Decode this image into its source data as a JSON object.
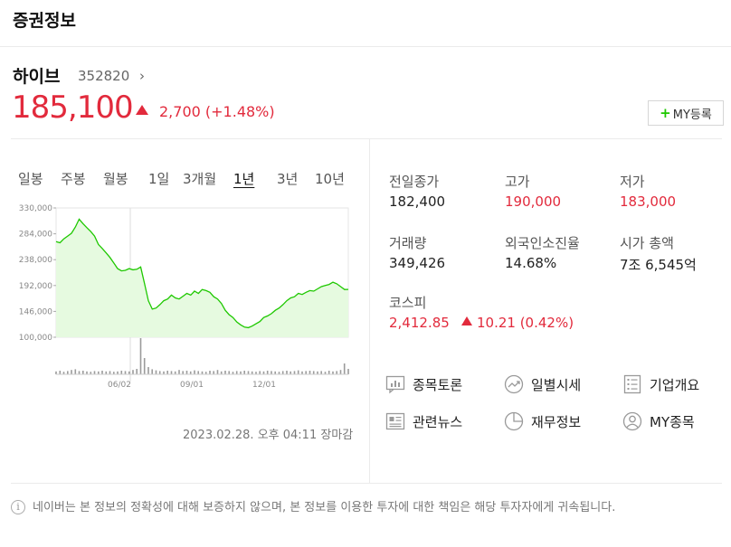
{
  "header": {
    "title": "증권정보"
  },
  "stock": {
    "name": "하이브",
    "code": "352820",
    "chevron": "›",
    "price": "185,100",
    "change": "2,700",
    "change_pct": "(+1.48%)"
  },
  "my_button": {
    "plus": "+",
    "label": "MY등록"
  },
  "tabs": [
    {
      "label": "일봉"
    },
    {
      "label": "주봉"
    },
    {
      "label": "월봉"
    },
    {
      "label": "1일"
    },
    {
      "label": "3개월"
    },
    {
      "label": "1년",
      "active": true
    },
    {
      "label": "3년"
    },
    {
      "label": "10년"
    }
  ],
  "chart_data": {
    "type": "area",
    "y_ticks": [
      "330,000",
      "284,000",
      "238,000",
      "192,000",
      "146,000",
      "100,000"
    ],
    "ylim": [
      100000,
      330000
    ],
    "x_ticks": [
      "06/02",
      "09/01",
      "12/01"
    ],
    "values": [
      270000,
      268000,
      275000,
      280000,
      285000,
      296000,
      310000,
      302000,
      295000,
      288000,
      280000,
      265000,
      258000,
      250000,
      242000,
      232000,
      222000,
      218000,
      219000,
      222000,
      220000,
      221000,
      225000,
      195000,
      165000,
      150000,
      152000,
      158000,
      165000,
      168000,
      175000,
      170000,
      168000,
      173000,
      178000,
      175000,
      182000,
      178000,
      185000,
      183000,
      180000,
      172000,
      168000,
      160000,
      148000,
      140000,
      135000,
      127000,
      122000,
      118000,
      117000,
      120000,
      124000,
      128000,
      135000,
      138000,
      142000,
      148000,
      152000,
      158000,
      165000,
      170000,
      172000,
      178000,
      176000,
      180000,
      183000,
      182000,
      186000,
      190000,
      192000,
      194000,
      198000,
      195000,
      190000,
      185000,
      185100
    ],
    "volume": [
      8,
      10,
      7,
      9,
      12,
      14,
      9,
      10,
      8,
      7,
      9,
      8,
      10,
      8,
      9,
      7,
      8,
      10,
      9,
      8,
      12,
      15,
      100,
      45,
      20,
      14,
      11,
      9,
      8,
      10,
      9,
      8,
      12,
      9,
      10,
      8,
      11,
      9,
      8,
      7,
      10,
      9,
      12,
      8,
      10,
      9,
      7,
      9,
      8,
      10,
      9,
      8,
      7,
      9,
      8,
      10,
      9,
      8,
      7,
      9,
      10,
      8,
      9,
      11,
      8,
      9,
      10,
      9,
      8,
      9,
      7,
      10,
      8,
      9,
      12,
      30,
      15
    ],
    "colors": {
      "line": "#1ec800",
      "fill": "#e6fae0",
      "volume": "#9b9b9b"
    }
  },
  "timestamp": "2023.02.28. 오후 04:11 장마감",
  "info": {
    "prev_close_label": "전일종가",
    "prev_close": "182,400",
    "high_label": "고가",
    "high": "190,000",
    "low_label": "저가",
    "low": "183,000",
    "volume_label": "거래량",
    "volume": "349,426",
    "foreign_label": "외국인소진율",
    "foreign": "14.68%",
    "mcap_label": "시가 총액",
    "mcap": "7조 6,545억",
    "kospi_label": "코스피",
    "kospi": "2,412.85",
    "kospi_change": "10.21 (0.42%)"
  },
  "links": [
    {
      "label": "종목토론",
      "icon": "chat-icon"
    },
    {
      "label": "일별시세",
      "icon": "trend-icon"
    },
    {
      "label": "기업개요",
      "icon": "list-icon"
    },
    {
      "label": "관련뉴스",
      "icon": "news-icon"
    },
    {
      "label": "재무정보",
      "icon": "pie-icon"
    },
    {
      "label": "MY종목",
      "icon": "user-icon"
    }
  ],
  "notice": "네이버는 본 정보의 정확성에 대해 보증하지 않으며, 본 정보를 이용한 투자에 대한 책임은 해당 투자자에게 귀속됩니다.",
  "colors": {
    "red": "#e22a3c",
    "green": "#1ec800"
  }
}
